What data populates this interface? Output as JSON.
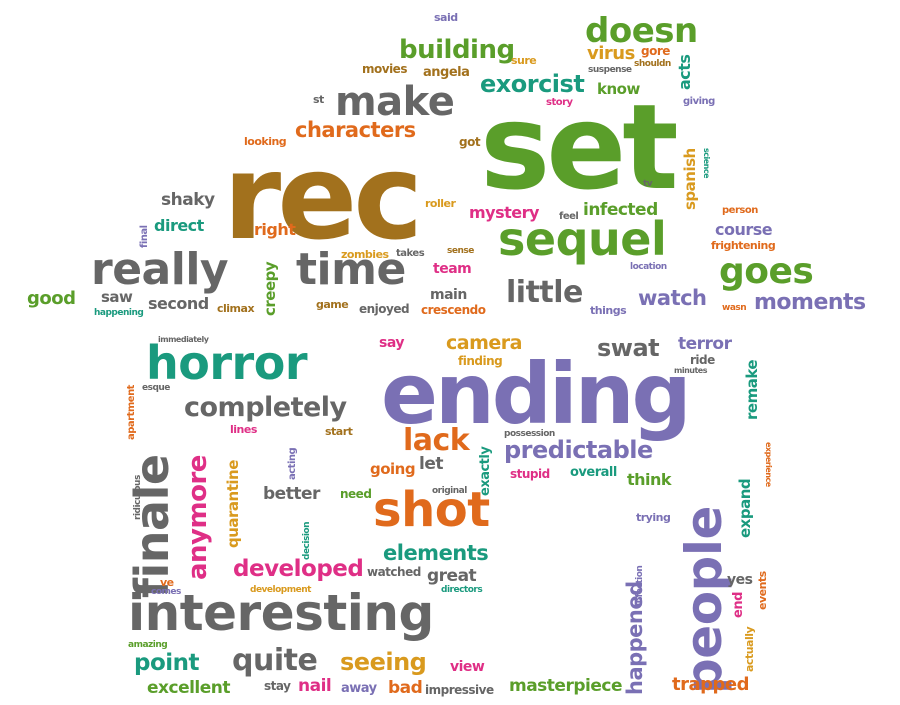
{
  "palette": {
    "green": "#5a9e2a",
    "brown": "#a2711d",
    "gray": "#666666",
    "purple": "#7a70b4",
    "teal": "#1a9a7e",
    "orange": "#e06a1c",
    "pink": "#df2f86",
    "gold": "#d99a1e",
    "dark": "#444444"
  },
  "words": [
    {
      "text": "said",
      "color": "purple"
    },
    {
      "text": "doesn",
      "color": "green"
    },
    {
      "text": "acts",
      "color": "teal"
    },
    {
      "text": "building",
      "color": "green"
    },
    {
      "text": "sure",
      "color": "gold"
    },
    {
      "text": "virus",
      "color": "gold"
    },
    {
      "text": "gore",
      "color": "orange"
    },
    {
      "text": "suspense",
      "color": "gray"
    },
    {
      "text": "shouldn",
      "color": "brown"
    },
    {
      "text": "movies",
      "color": "brown"
    },
    {
      "text": "angela",
      "color": "brown"
    },
    {
      "text": "exorcist",
      "color": "teal"
    },
    {
      "text": "know",
      "color": "green"
    },
    {
      "text": "st",
      "color": "gray"
    },
    {
      "text": "make",
      "color": "gray"
    },
    {
      "text": "story",
      "color": "pink"
    },
    {
      "text": "giving",
      "color": "purple"
    },
    {
      "text": "characters",
      "color": "orange"
    },
    {
      "text": "looking",
      "color": "orange"
    },
    {
      "text": "got",
      "color": "brown"
    },
    {
      "text": "set",
      "color": "green"
    },
    {
      "text": "rec",
      "color": "brown"
    },
    {
      "text": "spanish",
      "color": "gold"
    },
    {
      "text": "science",
      "color": "teal"
    },
    {
      "text": "tv",
      "color": "gray"
    },
    {
      "text": "shaky",
      "color": "gray"
    },
    {
      "text": "roller",
      "color": "gold"
    },
    {
      "text": "mystery",
      "color": "pink"
    },
    {
      "text": "feel",
      "color": "gray"
    },
    {
      "text": "infected",
      "color": "green"
    },
    {
      "text": "person",
      "color": "orange"
    },
    {
      "text": "final",
      "color": "purple"
    },
    {
      "text": "direct",
      "color": "teal"
    },
    {
      "text": "right",
      "color": "orange"
    },
    {
      "text": "course",
      "color": "purple"
    },
    {
      "text": "frightening",
      "color": "orange"
    },
    {
      "text": "sequel",
      "color": "green"
    },
    {
      "text": "zombies",
      "color": "gold"
    },
    {
      "text": "takes",
      "color": "gray"
    },
    {
      "text": "sense",
      "color": "brown"
    },
    {
      "text": "really",
      "color": "gray"
    },
    {
      "text": "time",
      "color": "gray"
    },
    {
      "text": "team",
      "color": "pink"
    },
    {
      "text": "creepy",
      "color": "green"
    },
    {
      "text": "location",
      "color": "purple"
    },
    {
      "text": "goes",
      "color": "green"
    },
    {
      "text": "good",
      "color": "green"
    },
    {
      "text": "saw",
      "color": "gray"
    },
    {
      "text": "happening",
      "color": "teal"
    },
    {
      "text": "second",
      "color": "gray"
    },
    {
      "text": "climax",
      "color": "brown"
    },
    {
      "text": "game",
      "color": "brown"
    },
    {
      "text": "enjoyed",
      "color": "gray"
    },
    {
      "text": "main",
      "color": "gray"
    },
    {
      "text": "crescendo",
      "color": "orange"
    },
    {
      "text": "little",
      "color": "gray"
    },
    {
      "text": "things",
      "color": "purple"
    },
    {
      "text": "watch",
      "color": "purple"
    },
    {
      "text": "wasn",
      "color": "orange"
    },
    {
      "text": "moments",
      "color": "purple"
    },
    {
      "text": "immediately",
      "color": "gray"
    },
    {
      "text": "say",
      "color": "pink"
    },
    {
      "text": "camera",
      "color": "gold"
    },
    {
      "text": "swat",
      "color": "gray"
    },
    {
      "text": "terror",
      "color": "purple"
    },
    {
      "text": "horror",
      "color": "teal"
    },
    {
      "text": "finding",
      "color": "gold"
    },
    {
      "text": "ride",
      "color": "gray"
    },
    {
      "text": "minutes",
      "color": "gray"
    },
    {
      "text": "remake",
      "color": "teal"
    },
    {
      "text": "esque",
      "color": "gray"
    },
    {
      "text": "apartment",
      "color": "orange"
    },
    {
      "text": "ending",
      "color": "purple"
    },
    {
      "text": "completely",
      "color": "gray"
    },
    {
      "text": "finale",
      "color": "gray"
    },
    {
      "text": "anymore",
      "color": "pink"
    },
    {
      "text": "lines",
      "color": "pink"
    },
    {
      "text": "start",
      "color": "brown"
    },
    {
      "text": "lack",
      "color": "orange"
    },
    {
      "text": "possession",
      "color": "gray"
    },
    {
      "text": "predictable",
      "color": "purple"
    },
    {
      "text": "people",
      "color": "purple"
    },
    {
      "text": "acting",
      "color": "purple"
    },
    {
      "text": "exactly",
      "color": "teal"
    },
    {
      "text": "stupid",
      "color": "pink"
    },
    {
      "text": "overall",
      "color": "teal"
    },
    {
      "text": "think",
      "color": "green"
    },
    {
      "text": "experience",
      "color": "orange"
    },
    {
      "text": "expand",
      "color": "teal"
    },
    {
      "text": "quarantine",
      "color": "gold"
    },
    {
      "text": "let",
      "color": "gray"
    },
    {
      "text": "going",
      "color": "orange"
    },
    {
      "text": "ridiculous",
      "color": "gray"
    },
    {
      "text": "better",
      "color": "gray"
    },
    {
      "text": "need",
      "color": "green"
    },
    {
      "text": "original",
      "color": "gray"
    },
    {
      "text": "shot",
      "color": "orange"
    },
    {
      "text": "trying",
      "color": "purple"
    },
    {
      "text": "happened",
      "color": "purple"
    },
    {
      "text": "infection",
      "color": "purple"
    },
    {
      "text": "decision",
      "color": "teal"
    },
    {
      "text": "elements",
      "color": "teal"
    },
    {
      "text": "yes",
      "color": "gray"
    },
    {
      "text": "events",
      "color": "orange"
    },
    {
      "text": "developed",
      "color": "pink"
    },
    {
      "text": "watched",
      "color": "gray"
    },
    {
      "text": "great",
      "color": "gray"
    },
    {
      "text": "ve",
      "color": "orange"
    },
    {
      "text": "comes",
      "color": "purple"
    },
    {
      "text": "development",
      "color": "gold"
    },
    {
      "text": "directors",
      "color": "teal"
    },
    {
      "text": "end",
      "color": "pink"
    },
    {
      "text": "actually",
      "color": "gold"
    },
    {
      "text": "interesting",
      "color": "gray"
    },
    {
      "text": "amazing",
      "color": "green"
    },
    {
      "text": "point",
      "color": "teal"
    },
    {
      "text": "quite",
      "color": "gray"
    },
    {
      "text": "seeing",
      "color": "gold"
    },
    {
      "text": "view",
      "color": "pink"
    },
    {
      "text": "excellent",
      "color": "green"
    },
    {
      "text": "stay",
      "color": "gray"
    },
    {
      "text": "nail",
      "color": "pink"
    },
    {
      "text": "away",
      "color": "purple"
    },
    {
      "text": "bad",
      "color": "orange"
    },
    {
      "text": "impressive",
      "color": "gray"
    },
    {
      "text": "masterpiece",
      "color": "green"
    },
    {
      "text": "trapped",
      "color": "orange"
    }
  ]
}
